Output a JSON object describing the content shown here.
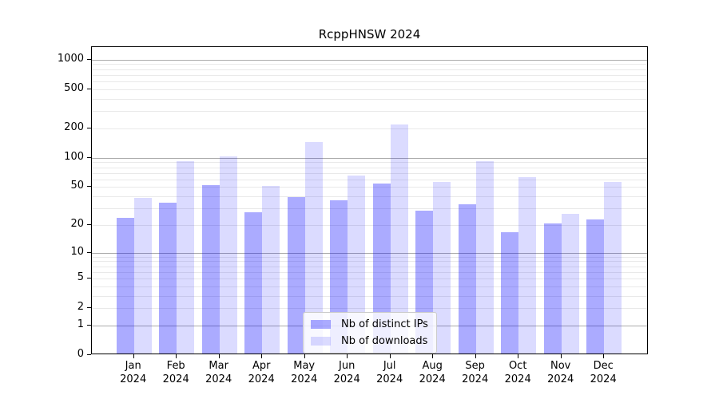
{
  "title": "RcppHNSW 2024",
  "chart_data": {
    "type": "bar",
    "title": "RcppHNSW 2024",
    "xlabel": "",
    "ylabel": "",
    "y_scale": "log10(value+1)",
    "ylim": [
      0,
      1342
    ],
    "grid": true,
    "legend_position": "inside-bottom-center",
    "categories": [
      {
        "month": "Jan",
        "year": "2024"
      },
      {
        "month": "Feb",
        "year": "2024"
      },
      {
        "month": "Mar",
        "year": "2024"
      },
      {
        "month": "Apr",
        "year": "2024"
      },
      {
        "month": "May",
        "year": "2024"
      },
      {
        "month": "Jun",
        "year": "2024"
      },
      {
        "month": "Jul",
        "year": "2024"
      },
      {
        "month": "Aug",
        "year": "2024"
      },
      {
        "month": "Sep",
        "year": "2024"
      },
      {
        "month": "Oct",
        "year": "2024"
      },
      {
        "month": "Nov",
        "year": "2024"
      },
      {
        "month": "Dec",
        "year": "2024"
      }
    ],
    "series": [
      {
        "name": "Nb of distinct IPs",
        "color": "rgba(0,0,255,0.33)",
        "values": [
          23,
          33,
          50,
          26,
          38,
          35,
          52,
          27,
          32,
          16,
          20,
          22
        ]
      },
      {
        "name": "Nb of downloads",
        "color": "rgba(0,0,255,0.14)",
        "values": [
          37,
          88,
          100,
          49,
          140,
          63,
          210,
          54,
          89,
          61,
          25,
          54
        ]
      }
    ],
    "y_tick_values": [
      1000,
      500,
      200,
      100,
      50,
      20,
      10,
      5,
      2,
      1,
      0
    ],
    "y_major_gridlines": [
      1,
      10,
      100,
      1000
    ],
    "y_minor_gridlines": [
      2,
      3,
      4,
      5,
      6,
      7,
      8,
      9,
      20,
      30,
      40,
      50,
      60,
      70,
      80,
      90,
      200,
      300,
      400,
      500,
      600,
      700,
      800,
      900
    ]
  },
  "colors": {
    "bar_distinct_ips": "rgba(0,0,255,0.33)",
    "bar_downloads": "rgba(0,0,255,0.14)",
    "major_gridline": "#ababab",
    "minor_gridline": "#e9e9e9",
    "axis": "#000000"
  }
}
